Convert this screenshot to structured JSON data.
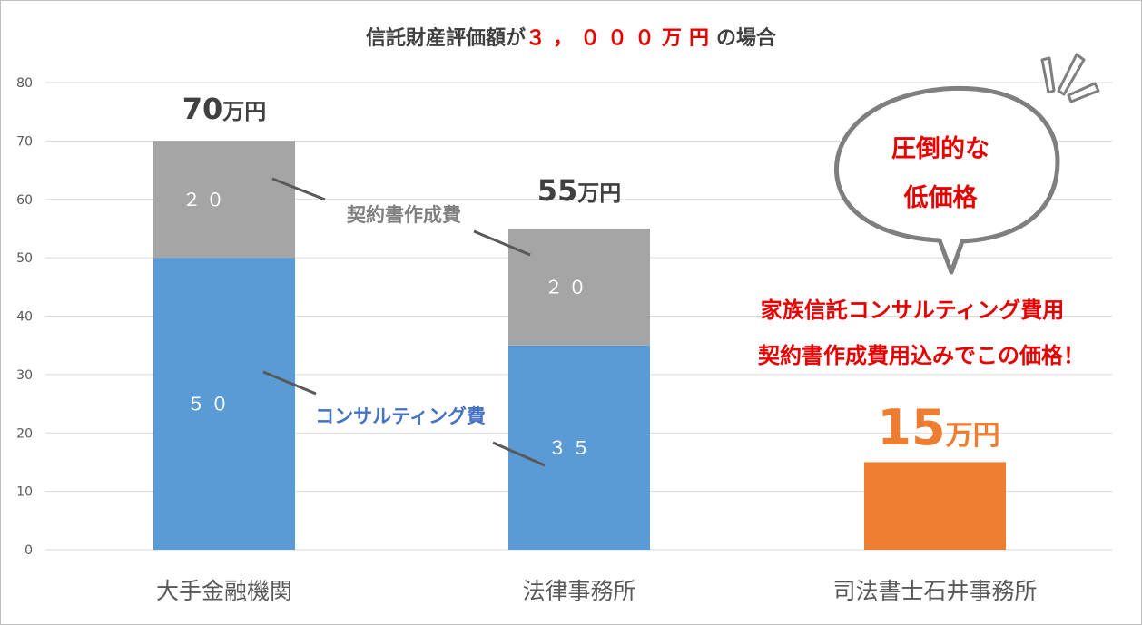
{
  "chart_data": {
    "type": "bar",
    "title_prefix": "信託財産評価額が",
    "title_highlight": "３，０００万円",
    "title_suffix": "の場合",
    "ylim": [
      0,
      80
    ],
    "yticks": [
      0,
      10,
      20,
      30,
      40,
      50,
      60,
      70,
      80
    ],
    "grid": true,
    "categories": [
      "大手金融機関",
      "法律事務所",
      "司法書士石井事務所"
    ],
    "series": [
      {
        "name": "コンサルティング費",
        "values": [
          50,
          35,
          null
        ],
        "data_labels": [
          "５０",
          "３５",
          ""
        ],
        "color": "#5b9bd5"
      },
      {
        "name": "契約書作成費",
        "values": [
          20,
          20,
          null
        ],
        "data_labels": [
          "２０",
          "２０",
          ""
        ],
        "color": "#a5a5a5"
      },
      {
        "name": "",
        "values": [
          null,
          null,
          15
        ],
        "data_labels": [
          "",
          "",
          ""
        ],
        "color": "#ed7d31"
      }
    ],
    "totals": [
      {
        "number": "70",
        "unit": "万円"
      },
      {
        "number": "55",
        "unit": "万円"
      },
      {
        "number": "15",
        "unit": "万円"
      }
    ],
    "annotations": {
      "contract_label": "契約書作成費",
      "consulting_label": "コンサルティング費",
      "bubble_line1": "圧倒的な",
      "bubble_line2": "低価格",
      "promo_line1": "家族信託コンサルティング費用",
      "promo_line2": "契約書作成費用込みでこの価格！"
    }
  },
  "colors": {
    "consulting": "#5b9bd5",
    "contract": "#a5a5a5",
    "highlight": "#ed7d31",
    "red": "#e60000",
    "label_blue": "#4472c4",
    "text_dark": "#404040",
    "axis_text": "#595959",
    "grid": "#d9d9d9"
  }
}
